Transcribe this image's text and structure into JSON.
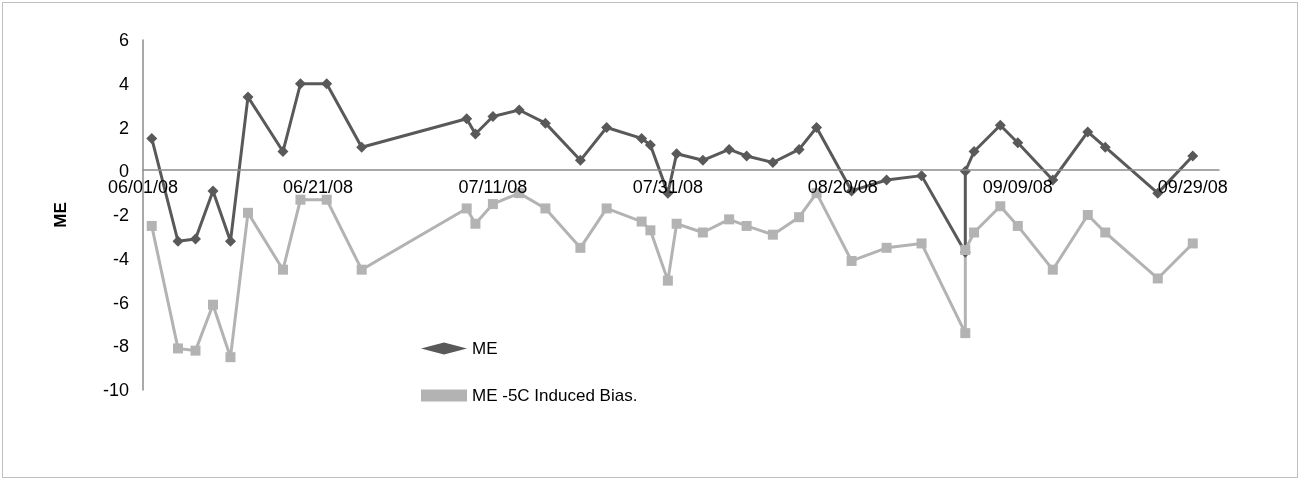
{
  "chart_data": {
    "type": "line",
    "ylabel": "ME",
    "xlim": [
      "2008-06-01",
      "2008-10-02"
    ],
    "xticks": [
      {
        "value": "2008-06-01",
        "label": "06/01/08"
      },
      {
        "value": "2008-06-21",
        "label": "06/21/08"
      },
      {
        "value": "2008-07-11",
        "label": "07/11/08"
      },
      {
        "value": "2008-07-31",
        "label": "07/31/08"
      },
      {
        "value": "2008-08-20",
        "label": "08/20/08"
      },
      {
        "value": "2008-09-09",
        "label": "09/09/08"
      },
      {
        "value": "2008-09-29",
        "label": "09/29/08"
      }
    ],
    "ylim": [
      -10,
      6
    ],
    "yticks": [
      -10,
      -8,
      -6,
      -4,
      -2,
      0,
      2,
      4,
      6
    ],
    "x": [
      "2008-06-02",
      "2008-06-05",
      "2008-06-07",
      "2008-06-09",
      "2008-06-11",
      "2008-06-13",
      "2008-06-17",
      "2008-06-19",
      "2008-06-22",
      "2008-06-26",
      "2008-07-08",
      "2008-07-09",
      "2008-07-11",
      "2008-07-14",
      "2008-07-17",
      "2008-07-21",
      "2008-07-24",
      "2008-07-28",
      "2008-07-29",
      "2008-07-31",
      "2008-08-01",
      "2008-08-04",
      "2008-08-07",
      "2008-08-09",
      "2008-08-12",
      "2008-08-15",
      "2008-08-17",
      "2008-08-21",
      "2008-08-25",
      "2008-08-29",
      "2008-09-03",
      "2008-09-03",
      "2008-09-04",
      "2008-09-07",
      "2008-09-09",
      "2008-09-13",
      "2008-09-17",
      "2008-09-19",
      "2008-09-25",
      "2008-09-29"
    ],
    "series": [
      {
        "name": "ME",
        "color": "#595959",
        "marker": "diamond",
        "values": [
          1.5,
          -3.2,
          -3.1,
          -0.9,
          -3.2,
          3.4,
          0.9,
          4.0,
          4.0,
          1.1,
          2.4,
          1.7,
          2.5,
          2.8,
          2.2,
          0.5,
          2.0,
          1.5,
          1.2,
          -1.0,
          0.8,
          0.5,
          1.0,
          0.7,
          0.4,
          1.0,
          2.0,
          -0.9,
          -0.4,
          -0.2,
          -3.7,
          0.0,
          0.9,
          2.1,
          1.3,
          -0.4,
          1.8,
          1.1,
          -1.0,
          0.7
        ]
      },
      {
        "name": "ME -5C Induced Bias.",
        "color": "#b3b3b3",
        "marker": "square",
        "values": [
          -2.5,
          -8.1,
          -8.2,
          -6.1,
          -8.5,
          -1.9,
          -4.5,
          -1.3,
          -1.3,
          -4.5,
          -1.7,
          -2.4,
          -1.5,
          -1.0,
          -1.7,
          -3.5,
          -1.7,
          -2.3,
          -2.7,
          -5.0,
          -2.4,
          -2.8,
          -2.2,
          -2.5,
          -2.9,
          -2.1,
          -1.0,
          -4.1,
          -3.5,
          -3.3,
          -7.4,
          -3.6,
          -2.8,
          -1.6,
          -2.5,
          -4.5,
          -2.0,
          -2.8,
          -4.9,
          -3.3
        ]
      }
    ],
    "grid": false,
    "legend": "bottom"
  }
}
